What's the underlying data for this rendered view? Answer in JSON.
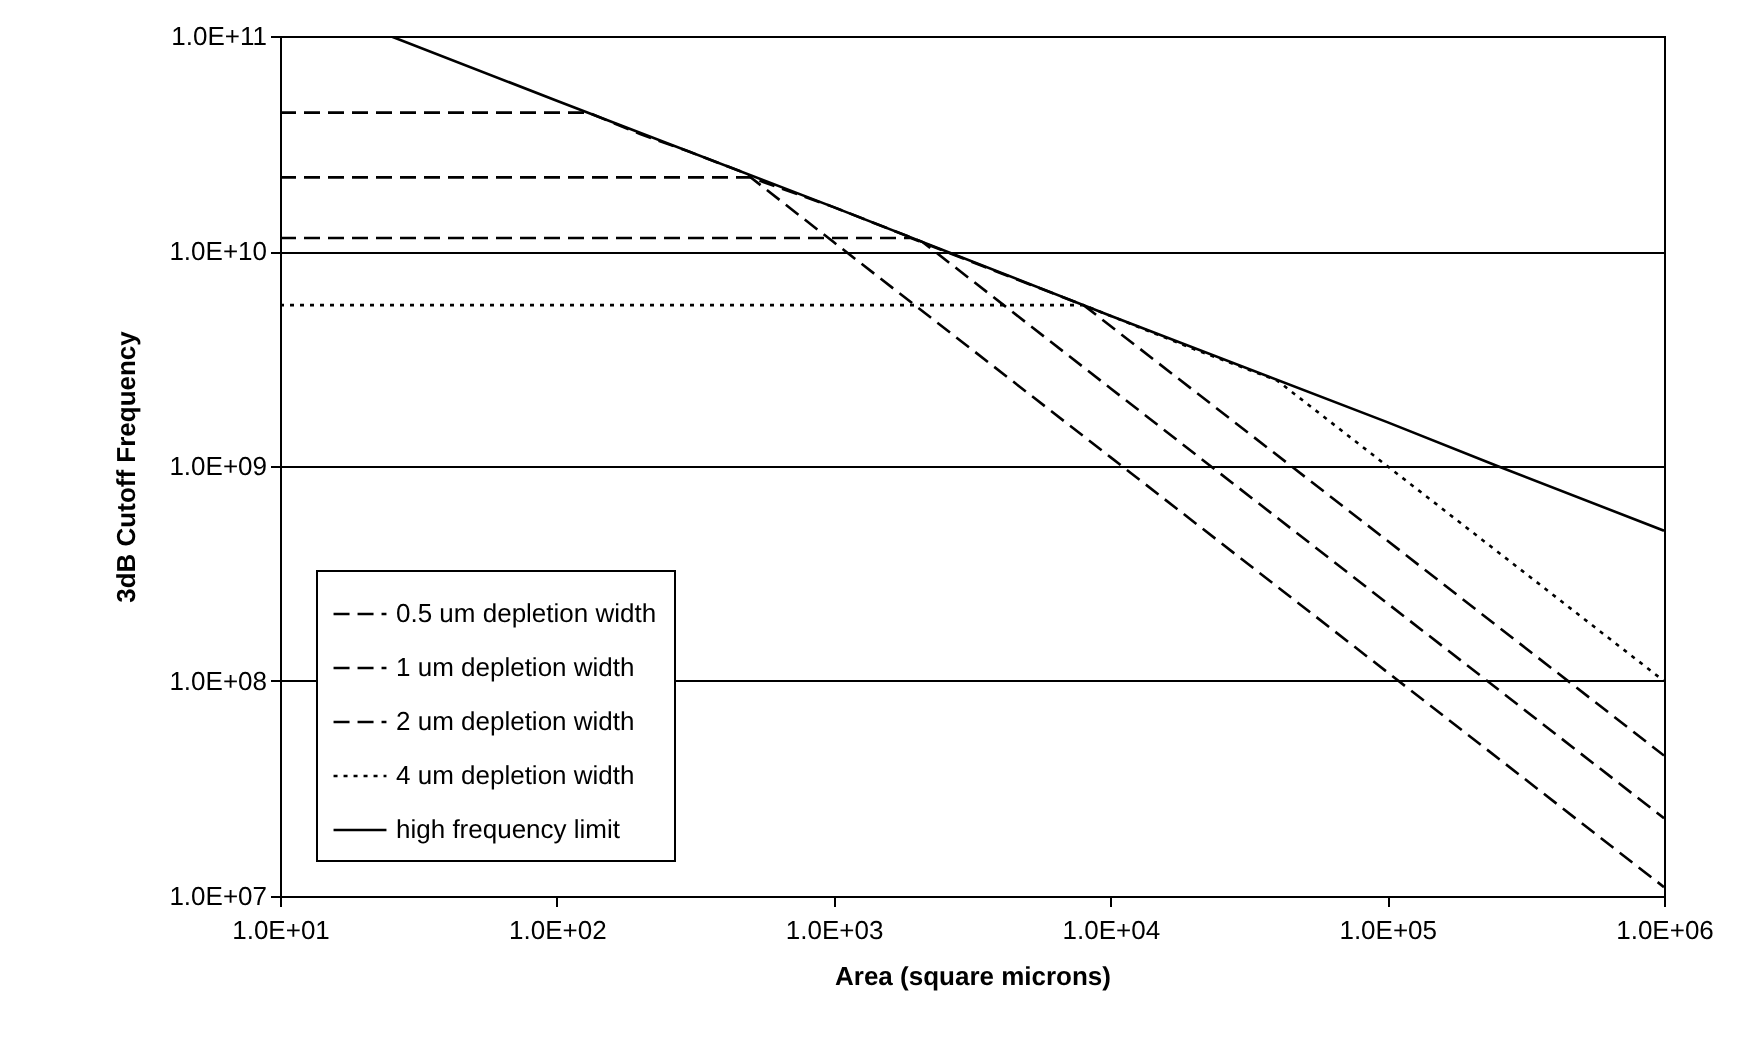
{
  "chart_data": {
    "type": "line",
    "xlabel": "Area (square microns)",
    "ylabel": "3dB Cutoff Frequency",
    "log": "xy",
    "grid": "y",
    "legend": "bottom left",
    "marker": "none",
    "xlim": [
      10,
      1000000
    ],
    "ylim": [
      10000000,
      100000000000
    ],
    "xticks": [
      {
        "value": 10,
        "label": "1.0E+01"
      },
      {
        "value": 100,
        "label": "1.0E+02"
      },
      {
        "value": 1000,
        "label": "1.0E+03"
      },
      {
        "value": 10000,
        "label": "1.0E+04"
      },
      {
        "value": 100000,
        "label": "1.0E+05"
      },
      {
        "value": 1000000,
        "label": "1.0E+06"
      }
    ],
    "yticks": [
      {
        "value": 10000000,
        "label": "1.0E+07"
      },
      {
        "value": 100000000,
        "label": "1.0E+08"
      },
      {
        "value": 1000000000,
        "label": "1.0E+09"
      },
      {
        "value": 10000000000,
        "label": "1.0E+10"
      },
      {
        "value": 100000000000,
        "label": "1.0E+11"
      }
    ],
    "series": [
      {
        "name": "0.5 um depletion width",
        "color": "#000000",
        "line_style": "dashed",
        "x": [
          10,
          130,
          200,
          300,
          480,
          1000,
          10000,
          100000,
          1000000
        ],
        "values": [
          44000000000,
          44000000000,
          35000000000,
          29000000000,
          23000000000,
          11000000000,
          1100000000,
          110000000,
          11000000
        ]
      },
      {
        "name": "1 um depletion width",
        "color": "#000000",
        "line_style": "dashed",
        "x": [
          10,
          500,
          1000,
          2100,
          10000,
          100000,
          1000000
        ],
        "values": [
          22000000000,
          22000000000,
          16000000000,
          11000000000,
          2300000000,
          230000000,
          23000000
        ]
      },
      {
        "name": "2 um depletion width",
        "color": "#000000",
        "line_style": "dashed",
        "x": [
          10,
          1900,
          4000,
          8000,
          100000,
          1000000
        ],
        "values": [
          11500000000,
          11500000000,
          7900000000,
          5600000000,
          450000000,
          45000000
        ]
      },
      {
        "name": "4 um depletion width",
        "color": "#000000",
        "line_style": "dotted",
        "x": [
          10,
          8000,
          20000,
          40000,
          100000,
          1000000
        ],
        "values": [
          5600000000,
          5600000000,
          3500000000,
          2500000000,
          1000000000,
          100000000
        ]
      },
      {
        "name": "high frequency limit",
        "color": "#000000",
        "line_style": "solid",
        "x": [
          25,
          100,
          1000,
          10000,
          100000,
          250000,
          1000000
        ],
        "values": [
          100000000000,
          50000000000,
          16000000000,
          5000000000,
          1600000000,
          1000000000,
          500000000
        ]
      }
    ]
  }
}
